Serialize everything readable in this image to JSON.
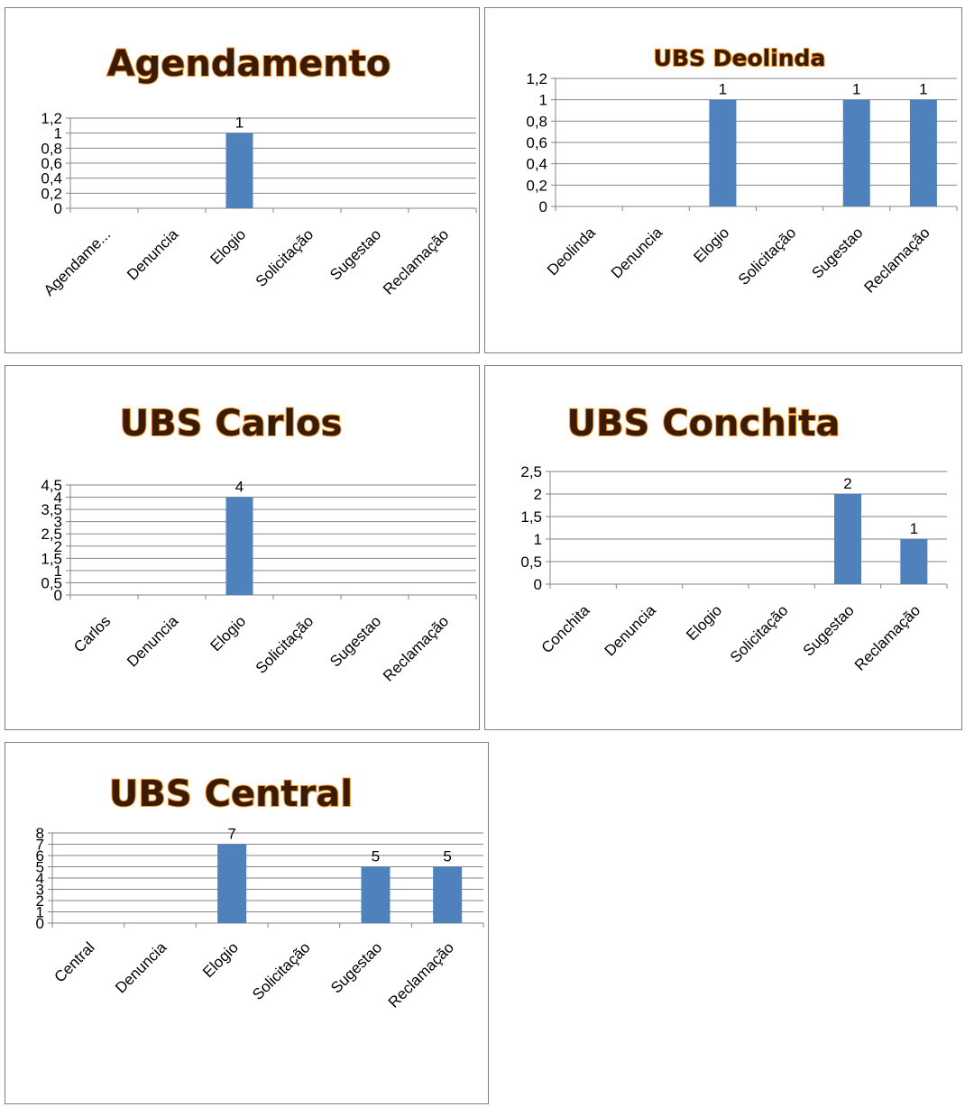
{
  "chart_data": [
    {
      "type": "bar",
      "title": "Agendamento",
      "categories": [
        "Agendame...",
        "Denuncia",
        "Elogio",
        "Solicitação",
        "Sugestao",
        "Reclamação"
      ],
      "values": [
        0,
        0,
        1,
        0,
        0,
        0
      ],
      "data_labels": [
        "",
        "",
        "1",
        "",
        "",
        ""
      ],
      "ylim": [
        0,
        1.2
      ],
      "yticks": [
        "0",
        "0,2",
        "0,4",
        "0,6",
        "0,8",
        "1",
        "1,2"
      ],
      "grid": true,
      "color": "#4f81bd"
    },
    {
      "type": "bar",
      "title": "UBS Deolinda",
      "categories": [
        "Deolinda",
        "Denuncia",
        "Elogio",
        "Solicitação",
        "Sugestao",
        "Reclamação"
      ],
      "values": [
        0,
        0,
        1,
        0,
        1,
        1
      ],
      "data_labels": [
        "",
        "",
        "1",
        "",
        "1",
        "1"
      ],
      "ylim": [
        0,
        1.2
      ],
      "yticks": [
        "0",
        "0,2",
        "0,4",
        "0,6",
        "0,8",
        "1",
        "1,2"
      ],
      "grid": true,
      "color": "#4f81bd"
    },
    {
      "type": "bar",
      "title": "UBS Carlos",
      "categories": [
        "Carlos",
        "Denuncia",
        "Elogio",
        "Solicitação",
        "Sugestao",
        "Reclamação"
      ],
      "values": [
        0,
        0,
        4,
        0,
        0,
        0
      ],
      "data_labels": [
        "",
        "",
        "4",
        "",
        "",
        ""
      ],
      "ylim": [
        0,
        4.5
      ],
      "yticks": [
        "0",
        "0,5",
        "1",
        "1,5",
        "2",
        "2,5",
        "3",
        "3,5",
        "4",
        "4,5"
      ],
      "grid": true,
      "color": "#4f81bd"
    },
    {
      "type": "bar",
      "title": "UBS Conchita",
      "categories": [
        "Conchita",
        "Denuncia",
        "Elogio",
        "Solicitação",
        "Sugestao",
        "Reclamação"
      ],
      "values": [
        0,
        0,
        0,
        0,
        2,
        1
      ],
      "data_labels": [
        "",
        "",
        "",
        "",
        "2",
        "1"
      ],
      "ylim": [
        0,
        2.5
      ],
      "yticks": [
        "0",
        "0,5",
        "1",
        "1,5",
        "2",
        "2,5"
      ],
      "grid": true,
      "color": "#4f81bd"
    },
    {
      "type": "bar",
      "title": "UBS Central",
      "categories": [
        "Central",
        "Denuncia",
        "Elogio",
        "Solicitação",
        "Sugestao",
        "Reclamação"
      ],
      "values": [
        0,
        0,
        7,
        0,
        5,
        5
      ],
      "data_labels": [
        "",
        "",
        "7",
        "",
        "5",
        "5"
      ],
      "ylim": [
        0,
        8
      ],
      "yticks": [
        "0",
        "1",
        "2",
        "3",
        "4",
        "5",
        "6",
        "7",
        "8"
      ],
      "grid": true,
      "color": "#4f81bd"
    }
  ]
}
